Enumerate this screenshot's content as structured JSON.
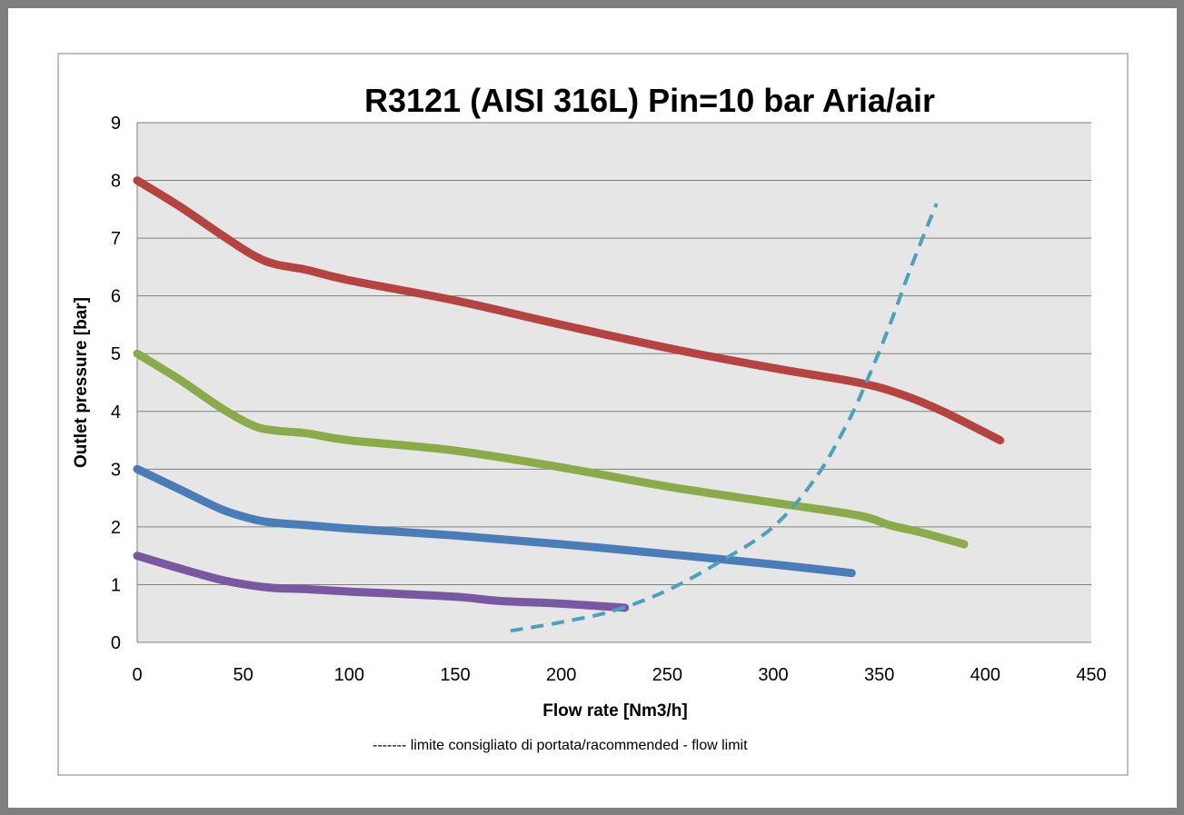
{
  "chart_data": {
    "type": "line",
    "title": "R3121 (AISI 316L) Pin=10 bar  Aria/air",
    "xlabel": "Flow rate [Nm3/h]",
    "ylabel": "Outlet pressure [bar]",
    "xlim": [
      0,
      450
    ],
    "ylim": [
      0,
      9
    ],
    "x_ticks": [
      0,
      50,
      100,
      150,
      200,
      250,
      300,
      350,
      400,
      450
    ],
    "y_ticks": [
      0,
      1,
      2,
      3,
      4,
      5,
      6,
      7,
      8,
      9
    ],
    "grid": true,
    "legend": {
      "text": "------- limite consigliato di portata/racommended - flow limit",
      "placement": "bottom"
    },
    "series": [
      {
        "color": "#b5433f",
        "style": "solid",
        "points": [
          [
            0,
            8.0
          ],
          [
            20,
            7.55
          ],
          [
            40,
            7.05
          ],
          [
            55,
            6.7
          ],
          [
            65,
            6.55
          ],
          [
            80,
            6.45
          ],
          [
            100,
            6.27
          ],
          [
            150,
            5.92
          ],
          [
            200,
            5.5
          ],
          [
            250,
            5.1
          ],
          [
            300,
            4.75
          ],
          [
            340,
            4.5
          ],
          [
            360,
            4.3
          ],
          [
            380,
            4.0
          ],
          [
            407,
            3.5
          ]
        ]
      },
      {
        "color": "#8aab4a",
        "style": "solid",
        "points": [
          [
            0,
            5.0
          ],
          [
            20,
            4.55
          ],
          [
            40,
            4.05
          ],
          [
            55,
            3.75
          ],
          [
            65,
            3.67
          ],
          [
            80,
            3.62
          ],
          [
            100,
            3.5
          ],
          [
            150,
            3.32
          ],
          [
            200,
            3.03
          ],
          [
            250,
            2.7
          ],
          [
            300,
            2.42
          ],
          [
            340,
            2.2
          ],
          [
            355,
            2.03
          ],
          [
            370,
            1.9
          ],
          [
            390,
            1.7
          ]
        ]
      },
      {
        "color": "#4a7db8",
        "style": "solid",
        "points": [
          [
            0,
            3.0
          ],
          [
            20,
            2.65
          ],
          [
            40,
            2.3
          ],
          [
            55,
            2.13
          ],
          [
            65,
            2.07
          ],
          [
            80,
            2.03
          ],
          [
            100,
            1.97
          ],
          [
            150,
            1.85
          ],
          [
            200,
            1.7
          ],
          [
            250,
            1.53
          ],
          [
            300,
            1.35
          ],
          [
            337,
            1.2
          ]
        ]
      },
      {
        "color": "#7858a0",
        "style": "solid",
        "points": [
          [
            0,
            1.5
          ],
          [
            20,
            1.28
          ],
          [
            40,
            1.08
          ],
          [
            55,
            0.98
          ],
          [
            65,
            0.94
          ],
          [
            80,
            0.92
          ],
          [
            100,
            0.88
          ],
          [
            150,
            0.79
          ],
          [
            170,
            0.72
          ],
          [
            200,
            0.67
          ],
          [
            230,
            0.6
          ]
        ]
      },
      {
        "color": "#4aa2bf",
        "style": "dashed",
        "points": [
          [
            176,
            0.2
          ],
          [
            200,
            0.35
          ],
          [
            225,
            0.55
          ],
          [
            250,
            0.9
          ],
          [
            275,
            1.4
          ],
          [
            300,
            2.0
          ],
          [
            320,
            2.85
          ],
          [
            335,
            3.8
          ],
          [
            345,
            4.6
          ],
          [
            355,
            5.5
          ],
          [
            365,
            6.5
          ],
          [
            377,
            7.6
          ]
        ]
      }
    ]
  }
}
